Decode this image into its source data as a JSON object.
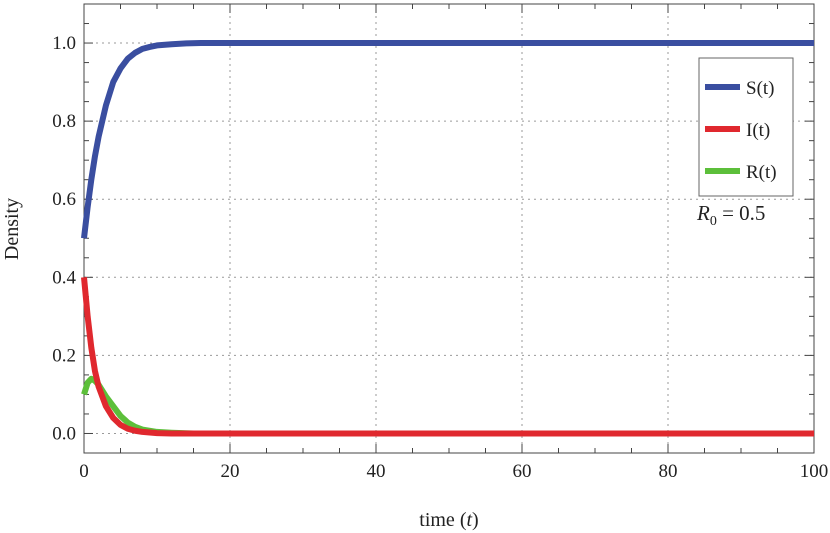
{
  "chart_data": {
    "type": "line",
    "xlabel_text": "time (",
    "xlabel_var": "t",
    "xlabel_close": ")",
    "ylabel": "Density",
    "xlim": [
      0,
      100
    ],
    "ylim": [
      -0.05,
      1.1
    ],
    "x_ticks": [
      0,
      20,
      40,
      60,
      80,
      100
    ],
    "x_tick_labels": [
      "0",
      "20",
      "40",
      "60",
      "80",
      "100"
    ],
    "y_ticks": [
      0,
      0.2,
      0.4,
      0.6,
      0.8,
      1.0
    ],
    "y_tick_labels": [
      "0.0",
      "0.2",
      "0.4",
      "0.6",
      "0.8",
      "1.0"
    ],
    "grid": true,
    "legend_position": "top-right",
    "annotation": {
      "var": "R",
      "sub": "0",
      "text": " = 0.5"
    },
    "series": [
      {
        "name": "S(t)",
        "color": "#3a4ea0",
        "x": [
          0,
          0.5,
          1,
          1.5,
          2,
          3,
          4,
          5,
          6,
          7,
          8,
          9,
          10,
          12,
          14,
          16,
          20,
          30,
          50,
          70,
          100
        ],
        "y": [
          0.5,
          0.58,
          0.65,
          0.71,
          0.76,
          0.84,
          0.9,
          0.935,
          0.96,
          0.975,
          0.985,
          0.99,
          0.994,
          0.997,
          0.999,
          1.0,
          1.0,
          1.0,
          1.0,
          1.0,
          1.0
        ]
      },
      {
        "name": "I(t)",
        "color": "#e0282e",
        "x": [
          0,
          0.5,
          1,
          1.5,
          2,
          3,
          4,
          5,
          6,
          7,
          8,
          10,
          12,
          15,
          20,
          30,
          50,
          70,
          100
        ],
        "y": [
          0.4,
          0.3,
          0.22,
          0.16,
          0.12,
          0.07,
          0.04,
          0.022,
          0.012,
          0.007,
          0.004,
          0.001,
          0.0,
          0.0,
          0.0,
          0.0,
          0.0,
          0.0,
          0.0
        ]
      },
      {
        "name": "R(t)",
        "color": "#5cbf3a",
        "x": [
          0,
          0.5,
          1,
          1.5,
          2,
          3,
          4,
          5,
          6,
          7,
          8,
          10,
          12,
          15,
          20,
          30,
          50,
          70,
          100
        ],
        "y": [
          0.1,
          0.13,
          0.14,
          0.135,
          0.125,
          0.095,
          0.07,
          0.045,
          0.028,
          0.017,
          0.01,
          0.004,
          0.002,
          0.0,
          0.0,
          0.0,
          0.0,
          0.0,
          0.0
        ]
      }
    ]
  }
}
